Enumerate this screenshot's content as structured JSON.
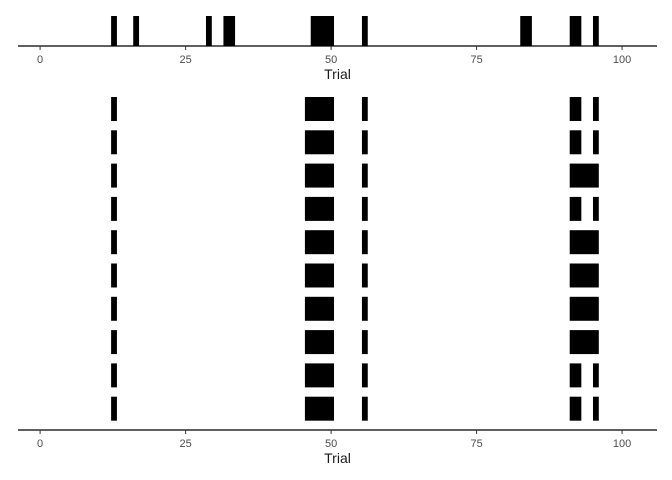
{
  "chart_data": [
    {
      "type": "barcode",
      "xlabel": "Trial",
      "xlim": [
        -3.8,
        106
      ],
      "ticks": [
        0,
        25,
        50,
        75,
        100
      ],
      "rows": [
        [
          [
            12.2,
            13.2
          ],
          [
            16,
            17
          ],
          [
            28.5,
            29.5
          ],
          [
            31.5,
            33.5
          ],
          [
            46.5,
            50.5
          ],
          [
            55.3,
            56.3
          ],
          [
            82.5,
            84.5
          ],
          [
            91,
            93
          ],
          [
            95,
            96
          ]
        ]
      ]
    },
    {
      "type": "barcode",
      "xlabel": "Trial",
      "xlim": [
        -3.8,
        106
      ],
      "ticks": [
        0,
        25,
        50,
        75,
        100
      ],
      "rows": [
        [
          [
            12.2,
            13.2
          ],
          [
            45.5,
            50.5
          ],
          [
            55.3,
            56.3
          ],
          [
            91,
            93
          ],
          [
            95,
            96
          ]
        ],
        [
          [
            12.2,
            13.2
          ],
          [
            45.5,
            50.5
          ],
          [
            55.3,
            56.3
          ],
          [
            91,
            93
          ],
          [
            95,
            96
          ]
        ],
        [
          [
            12.2,
            13.2
          ],
          [
            45.5,
            50.5
          ],
          [
            55.3,
            56.3
          ],
          [
            91,
            96
          ]
        ],
        [
          [
            12.2,
            13.2
          ],
          [
            45.5,
            50.5
          ],
          [
            55.3,
            56.3
          ],
          [
            91,
            93
          ],
          [
            95,
            96
          ]
        ],
        [
          [
            12.2,
            13.2
          ],
          [
            45.5,
            50.5
          ],
          [
            55.3,
            56.3
          ],
          [
            91,
            96
          ]
        ],
        [
          [
            12.2,
            13.2
          ],
          [
            45.5,
            50.5
          ],
          [
            55.3,
            56.3
          ],
          [
            91,
            96
          ]
        ],
        [
          [
            12.2,
            13.2
          ],
          [
            45.5,
            50.5
          ],
          [
            55.3,
            56.3
          ],
          [
            91,
            96
          ]
        ],
        [
          [
            12.2,
            13.2
          ],
          [
            45.5,
            50.5
          ],
          [
            55.3,
            56.3
          ],
          [
            91,
            96
          ]
        ],
        [
          [
            12.2,
            13.2
          ],
          [
            45.5,
            50.5
          ],
          [
            55.3,
            56.3
          ],
          [
            91,
            93
          ],
          [
            95,
            96
          ]
        ],
        [
          [
            12.2,
            13.2
          ],
          [
            45.5,
            50.5
          ],
          [
            55.3,
            56.3
          ],
          [
            91,
            93
          ],
          [
            95,
            96
          ]
        ]
      ]
    }
  ]
}
